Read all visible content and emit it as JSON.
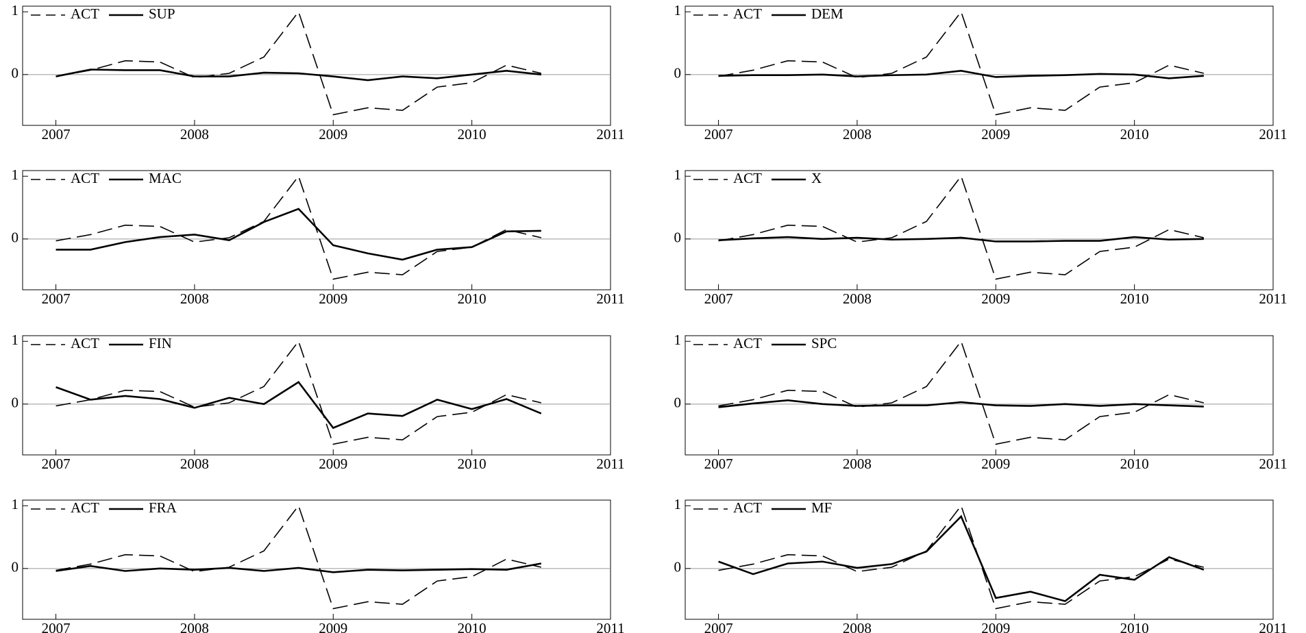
{
  "chart_data": [
    {
      "type": "line",
      "x": [
        2007,
        2007.25,
        2007.5,
        2007.75,
        2008,
        2008.25,
        2008.5,
        2008.75,
        2009,
        2009.25,
        2009.5,
        2009.75,
        2010,
        2010.25,
        2010.5
      ],
      "xlim": [
        2006.76,
        2011
      ],
      "xticks": [
        2007,
        2008,
        2009,
        2010,
        2011
      ],
      "ylim": [
        -0.81,
        1.09
      ],
      "yticks": [
        0,
        1
      ],
      "zero_line": true,
      "legend": "upper left",
      "series": [
        {
          "name": "ACT",
          "color": "#000000",
          "linestyle": "dashed",
          "values": [
            -0.03,
            0.07,
            0.22,
            0.2,
            -0.05,
            0.02,
            0.28,
            1.0,
            -0.64,
            -0.53,
            -0.57,
            -0.2,
            -0.13,
            0.15,
            0.02
          ]
        },
        {
          "name": "SUP",
          "color": "#000000",
          "linestyle": "solid",
          "values": [
            -0.03,
            0.08,
            0.07,
            0.07,
            -0.03,
            -0.03,
            0.03,
            0.02,
            -0.03,
            -0.09,
            -0.03,
            -0.06,
            0.0,
            0.06,
            0.0
          ]
        }
      ]
    },
    {
      "type": "line",
      "x": [
        2007,
        2007.25,
        2007.5,
        2007.75,
        2008,
        2008.25,
        2008.5,
        2008.75,
        2009,
        2009.25,
        2009.5,
        2009.75,
        2010,
        2010.25,
        2010.5
      ],
      "xlim": [
        2006.76,
        2011
      ],
      "xticks": [
        2007,
        2008,
        2009,
        2010,
        2011
      ],
      "ylim": [
        -0.81,
        1.09
      ],
      "yticks": [
        0,
        1
      ],
      "zero_line": true,
      "legend": "upper left",
      "series": [
        {
          "name": "ACT",
          "color": "#000000",
          "linestyle": "dashed",
          "values": [
            -0.03,
            0.07,
            0.22,
            0.2,
            -0.05,
            0.02,
            0.28,
            1.0,
            -0.64,
            -0.53,
            -0.57,
            -0.2,
            -0.13,
            0.15,
            0.02
          ]
        },
        {
          "name": "DEM",
          "color": "#000000",
          "linestyle": "solid",
          "values": [
            -0.02,
            -0.01,
            -0.01,
            0.0,
            -0.03,
            -0.01,
            0.0,
            0.06,
            -0.04,
            -0.02,
            -0.01,
            0.01,
            0.0,
            -0.06,
            -0.02
          ]
        }
      ]
    },
    {
      "type": "line",
      "x": [
        2007,
        2007.25,
        2007.5,
        2007.75,
        2008,
        2008.25,
        2008.5,
        2008.75,
        2009,
        2009.25,
        2009.5,
        2009.75,
        2010,
        2010.25,
        2010.5
      ],
      "xlim": [
        2006.76,
        2011
      ],
      "xticks": [
        2007,
        2008,
        2009,
        2010,
        2011
      ],
      "ylim": [
        -0.81,
        1.09
      ],
      "yticks": [
        0,
        1
      ],
      "zero_line": true,
      "legend": "upper left",
      "series": [
        {
          "name": "ACT",
          "color": "#000000",
          "linestyle": "dashed",
          "values": [
            -0.03,
            0.07,
            0.22,
            0.2,
            -0.05,
            0.02,
            0.28,
            1.0,
            -0.64,
            -0.53,
            -0.57,
            -0.2,
            -0.13,
            0.15,
            0.02
          ]
        },
        {
          "name": "MAC",
          "color": "#000000",
          "linestyle": "solid",
          "values": [
            -0.17,
            -0.17,
            -0.05,
            0.03,
            0.07,
            -0.02,
            0.27,
            0.48,
            -0.1,
            -0.23,
            -0.33,
            -0.17,
            -0.13,
            0.12,
            0.13
          ]
        }
      ]
    },
    {
      "type": "line",
      "x": [
        2007,
        2007.25,
        2007.5,
        2007.75,
        2008,
        2008.25,
        2008.5,
        2008.75,
        2009,
        2009.25,
        2009.5,
        2009.75,
        2010,
        2010.25,
        2010.5
      ],
      "xlim": [
        2006.76,
        2011
      ],
      "xticks": [
        2007,
        2008,
        2009,
        2010,
        2011
      ],
      "ylim": [
        -0.81,
        1.09
      ],
      "yticks": [
        0,
        1
      ],
      "zero_line": true,
      "legend": "upper left",
      "series": [
        {
          "name": "ACT",
          "color": "#000000",
          "linestyle": "dashed",
          "values": [
            -0.03,
            0.07,
            0.22,
            0.2,
            -0.05,
            0.02,
            0.28,
            1.0,
            -0.64,
            -0.53,
            -0.57,
            -0.2,
            -0.13,
            0.15,
            0.02
          ]
        },
        {
          "name": "X",
          "color": "#000000",
          "linestyle": "solid",
          "values": [
            -0.02,
            0.01,
            0.03,
            0.0,
            0.02,
            -0.01,
            0.0,
            0.02,
            -0.04,
            -0.04,
            -0.03,
            -0.03,
            0.03,
            -0.01,
            0.0
          ]
        }
      ]
    },
    {
      "type": "line",
      "x": [
        2007,
        2007.25,
        2007.5,
        2007.75,
        2008,
        2008.25,
        2008.5,
        2008.75,
        2009,
        2009.25,
        2009.5,
        2009.75,
        2010,
        2010.25,
        2010.5
      ],
      "xlim": [
        2006.76,
        2011
      ],
      "xticks": [
        2007,
        2008,
        2009,
        2010,
        2011
      ],
      "ylim": [
        -0.81,
        1.09
      ],
      "yticks": [
        0,
        1
      ],
      "zero_line": true,
      "legend": "upper left",
      "series": [
        {
          "name": "ACT",
          "color": "#000000",
          "linestyle": "dashed",
          "values": [
            -0.03,
            0.07,
            0.22,
            0.2,
            -0.05,
            0.02,
            0.28,
            1.0,
            -0.64,
            -0.53,
            -0.57,
            -0.2,
            -0.13,
            0.15,
            0.02
          ]
        },
        {
          "name": "FIN",
          "color": "#000000",
          "linestyle": "solid",
          "values": [
            0.27,
            0.07,
            0.13,
            0.08,
            -0.06,
            0.1,
            0.0,
            0.35,
            -0.38,
            -0.15,
            -0.19,
            0.07,
            -0.08,
            0.08,
            -0.15
          ]
        }
      ]
    },
    {
      "type": "line",
      "x": [
        2007,
        2007.25,
        2007.5,
        2007.75,
        2008,
        2008.25,
        2008.5,
        2008.75,
        2009,
        2009.25,
        2009.5,
        2009.75,
        2010,
        2010.25,
        2010.5
      ],
      "xlim": [
        2006.76,
        2011
      ],
      "xticks": [
        2007,
        2008,
        2009,
        2010,
        2011
      ],
      "ylim": [
        -0.81,
        1.09
      ],
      "yticks": [
        0,
        1
      ],
      "zero_line": true,
      "legend": "upper left",
      "series": [
        {
          "name": "ACT",
          "color": "#000000",
          "linestyle": "dashed",
          "values": [
            -0.03,
            0.07,
            0.22,
            0.2,
            -0.05,
            0.02,
            0.28,
            1.0,
            -0.64,
            -0.53,
            -0.57,
            -0.2,
            -0.13,
            0.15,
            0.02
          ]
        },
        {
          "name": "SPC",
          "color": "#000000",
          "linestyle": "solid",
          "values": [
            -0.05,
            0.01,
            0.06,
            0.0,
            -0.03,
            -0.02,
            -0.02,
            0.03,
            -0.02,
            -0.03,
            0.0,
            -0.03,
            0.0,
            -0.02,
            -0.04
          ]
        }
      ]
    },
    {
      "type": "line",
      "x": [
        2007,
        2007.25,
        2007.5,
        2007.75,
        2008,
        2008.25,
        2008.5,
        2008.75,
        2009,
        2009.25,
        2009.5,
        2009.75,
        2010,
        2010.25,
        2010.5
      ],
      "xlim": [
        2006.76,
        2011
      ],
      "xticks": [
        2007,
        2008,
        2009,
        2010,
        2011
      ],
      "ylim": [
        -0.81,
        1.09
      ],
      "yticks": [
        0,
        1
      ],
      "zero_line": true,
      "legend": "upper left",
      "series": [
        {
          "name": "ACT",
          "color": "#000000",
          "linestyle": "dashed",
          "values": [
            -0.03,
            0.07,
            0.22,
            0.2,
            -0.05,
            0.02,
            0.28,
            1.0,
            -0.64,
            -0.53,
            -0.57,
            -0.2,
            -0.13,
            0.15,
            0.02
          ]
        },
        {
          "name": "FRA",
          "color": "#000000",
          "linestyle": "solid",
          "values": [
            -0.04,
            0.04,
            -0.04,
            0.0,
            -0.02,
            0.01,
            -0.04,
            0.01,
            -0.06,
            -0.02,
            -0.03,
            -0.02,
            -0.01,
            -0.02,
            0.08
          ]
        }
      ]
    },
    {
      "type": "line",
      "x": [
        2007,
        2007.25,
        2007.5,
        2007.75,
        2008,
        2008.25,
        2008.5,
        2008.75,
        2009,
        2009.25,
        2009.5,
        2009.75,
        2010,
        2010.25,
        2010.5
      ],
      "xlim": [
        2006.76,
        2011
      ],
      "xticks": [
        2007,
        2008,
        2009,
        2010,
        2011
      ],
      "ylim": [
        -0.81,
        1.09
      ],
      "yticks": [
        0,
        1
      ],
      "zero_line": true,
      "legend": "upper left",
      "series": [
        {
          "name": "ACT",
          "color": "#000000",
          "linestyle": "dashed",
          "values": [
            -0.03,
            0.07,
            0.22,
            0.2,
            -0.05,
            0.02,
            0.28,
            1.0,
            -0.64,
            -0.53,
            -0.57,
            -0.2,
            -0.13,
            0.15,
            0.02
          ]
        },
        {
          "name": "MF",
          "color": "#000000",
          "linestyle": "solid",
          "values": [
            0.11,
            -0.09,
            0.08,
            0.11,
            0.01,
            0.07,
            0.27,
            0.83,
            -0.47,
            -0.37,
            -0.52,
            -0.1,
            -0.18,
            0.18,
            -0.02
          ]
        }
      ]
    }
  ]
}
